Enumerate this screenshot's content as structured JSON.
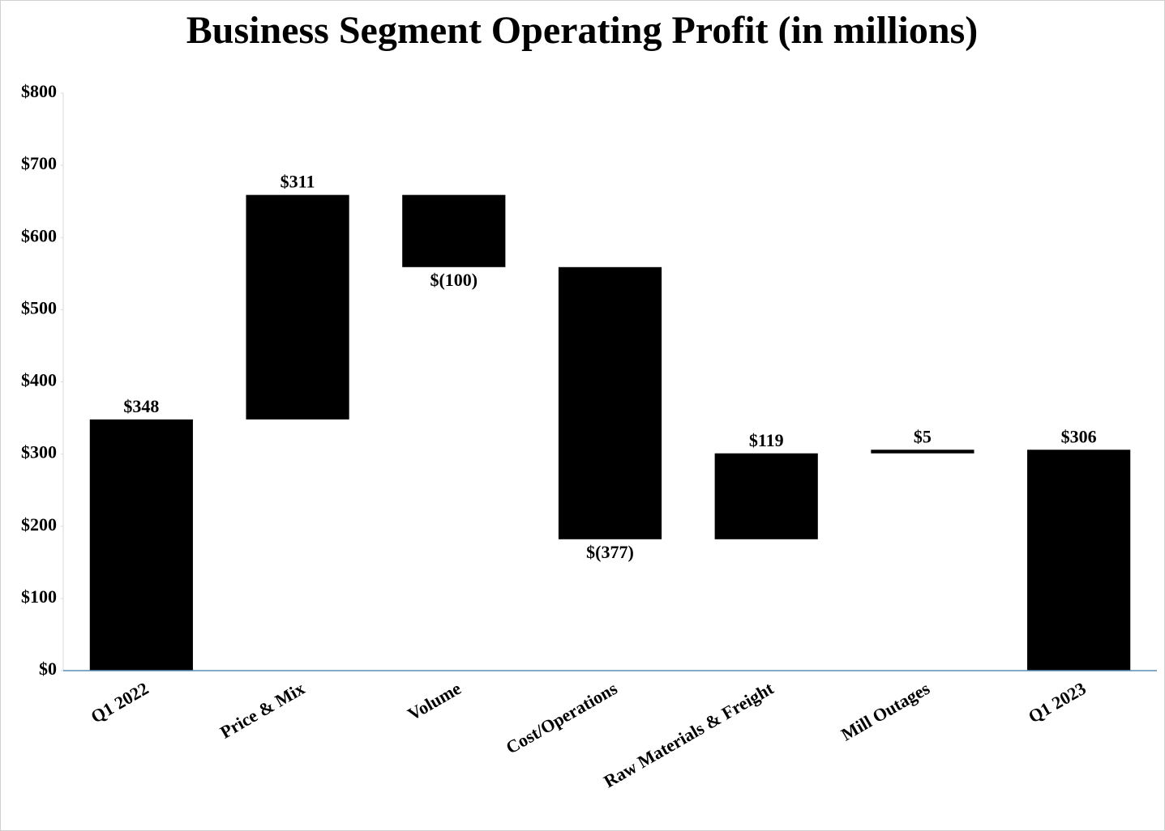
{
  "chart_data": {
    "type": "waterfall",
    "title": "Business Segment Operating Profit (in millions)",
    "categories": [
      "Q1 2022",
      "Price & Mix",
      "Volume",
      "Cost/Operations",
      "Raw Materials & Freight",
      "Mill Outages",
      "Q1 2023"
    ],
    "values": [
      348,
      311,
      -100,
      -377,
      119,
      5,
      306
    ],
    "value_labels": [
      "$348",
      "$311",
      "$(100)",
      "$(377)",
      "$119",
      "$5",
      "$306"
    ],
    "color": "#000000",
    "ylim": [
      0,
      800
    ],
    "yticks": [
      {
        "value": 0,
        "label": "$0"
      },
      {
        "value": 100,
        "label": "$100"
      },
      {
        "value": 200,
        "label": "$200"
      },
      {
        "value": 300,
        "label": "$300"
      },
      {
        "value": 400,
        "label": "$400"
      },
      {
        "value": 500,
        "label": "$500"
      },
      {
        "value": 600,
        "label": "$600"
      },
      {
        "value": 700,
        "label": "$700"
      },
      {
        "value": 800,
        "label": "$800"
      }
    ],
    "grid": false
  }
}
